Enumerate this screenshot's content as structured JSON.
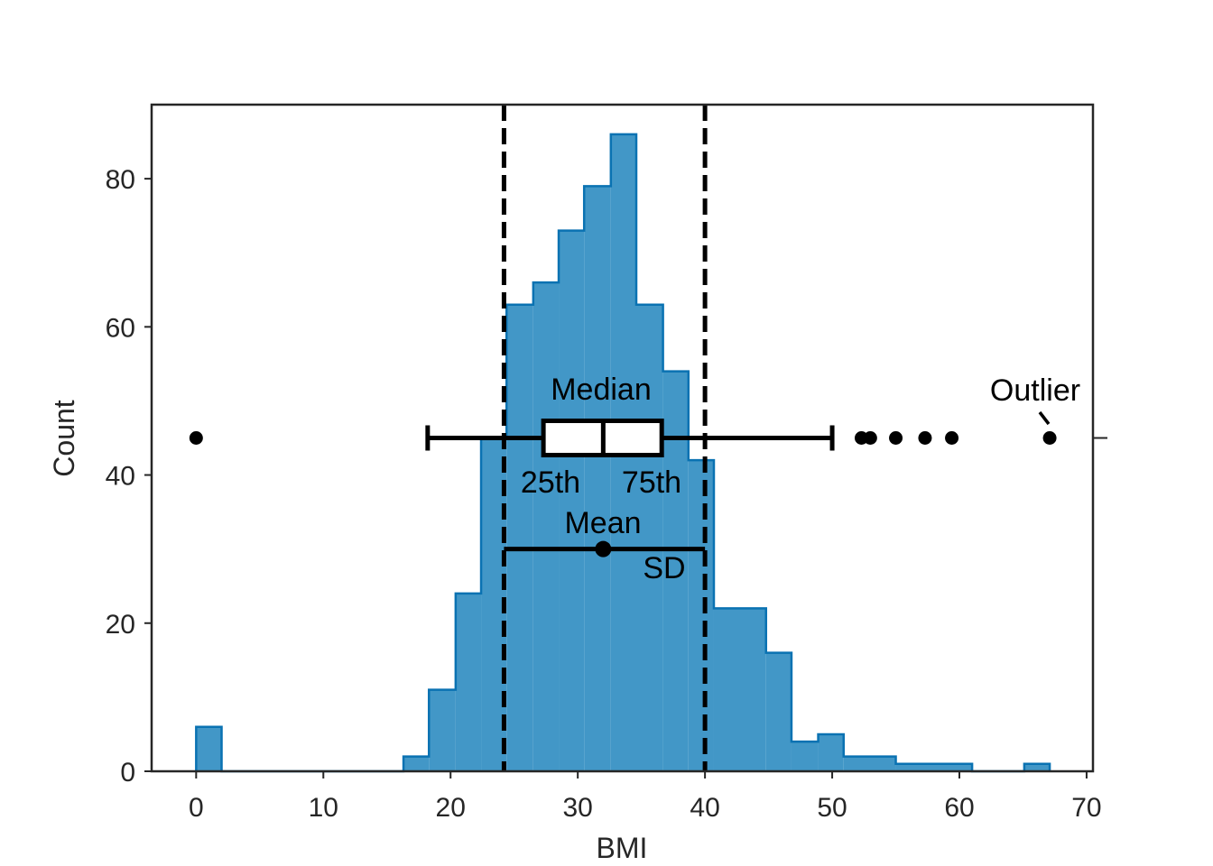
{
  "chart_data": {
    "type": "histogram",
    "title": "",
    "xlabel": "BMI",
    "ylabel": "Count",
    "xlim": [
      -3.5,
      70.5
    ],
    "ylim": [
      0,
      90
    ],
    "x_ticks": [
      0,
      10,
      20,
      30,
      40,
      50,
      60,
      70
    ],
    "x_tick_labels": [
      "0",
      "10",
      "20",
      "30",
      "40",
      "50",
      "60",
      "70"
    ],
    "y_ticks": [
      0,
      20,
      40,
      60,
      80
    ],
    "y_tick_labels": [
      "0",
      "20",
      "40",
      "60",
      "80"
    ],
    "grid": false,
    "colors": {
      "bar_fill": "#4297c7",
      "bar_edge": "#0a72b2",
      "annotation": "#000000",
      "axes": "#262626"
    },
    "bins": [
      {
        "x0": 0.0,
        "x1": 2.0,
        "count": 6
      },
      {
        "x0": 2.0,
        "x1": 16.3,
        "count": 0
      },
      {
        "x0": 16.3,
        "x1": 18.3,
        "count": 2
      },
      {
        "x0": 18.3,
        "x1": 20.4,
        "count": 11
      },
      {
        "x0": 20.4,
        "x1": 22.4,
        "count": 24
      },
      {
        "x0": 22.4,
        "x1": 24.4,
        "count": 45
      },
      {
        "x0": 24.4,
        "x1": 26.5,
        "count": 63
      },
      {
        "x0": 26.5,
        "x1": 28.5,
        "count": 66
      },
      {
        "x0": 28.5,
        "x1": 30.5,
        "count": 73
      },
      {
        "x0": 30.5,
        "x1": 32.6,
        "count": 79
      },
      {
        "x0": 32.6,
        "x1": 34.6,
        "count": 86
      },
      {
        "x0": 34.6,
        "x1": 36.7,
        "count": 63
      },
      {
        "x0": 36.7,
        "x1": 38.7,
        "count": 54
      },
      {
        "x0": 38.7,
        "x1": 40.7,
        "count": 42
      },
      {
        "x0": 40.7,
        "x1": 44.8,
        "count": 22
      },
      {
        "x0": 44.8,
        "x1": 46.8,
        "count": 16
      },
      {
        "x0": 46.8,
        "x1": 48.9,
        "count": 4
      },
      {
        "x0": 48.9,
        "x1": 50.9,
        "count": 5
      },
      {
        "x0": 50.9,
        "x1": 55.0,
        "count": 2
      },
      {
        "x0": 55.0,
        "x1": 61.0,
        "count": 1
      },
      {
        "x0": 61.0,
        "x1": 65.1,
        "count": 0
      },
      {
        "x0": 65.1,
        "x1": 67.1,
        "count": 1
      }
    ],
    "sd_lines": [
      24.2,
      40.0
    ],
    "boxplot": {
      "y": 45,
      "whisker_low": 18.2,
      "q1": 27.3,
      "median": 32.0,
      "q3": 36.6,
      "whisker_high": 50.0,
      "outliers": [
        0.0,
        52.3,
        53.0,
        55.0,
        57.3,
        59.4,
        67.1
      ]
    },
    "mean_sd": {
      "y": 30,
      "mean": 32.0,
      "low": 24.2,
      "high": 40.0
    },
    "annotations": {
      "median": "Median",
      "q1": "25th",
      "q3": "75th",
      "mean": "Mean",
      "sd": "SD",
      "outlier": "Outlier"
    }
  }
}
